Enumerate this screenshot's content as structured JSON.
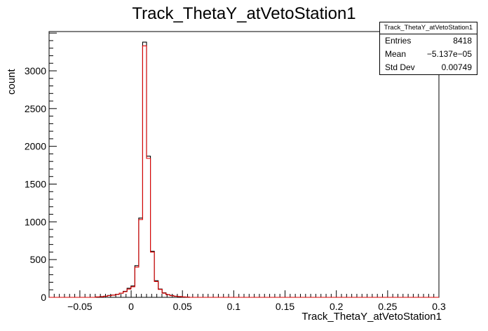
{
  "chart_data": {
    "type": "histogram",
    "title": "Track_ThetaY_atVetoStation1",
    "xlabel": "Track_ThetaY_atVetoStation1",
    "ylabel": "count",
    "xlim": [
      -0.08,
      0.3
    ],
    "ylim": [
      0,
      3520
    ],
    "x_ticks": [
      "−0.05",
      "0",
      "0.05",
      "0.1",
      "0.15",
      "0.2",
      "0.25",
      "0.3"
    ],
    "x_tick_values": [
      -0.05,
      0,
      0.05,
      0.1,
      0.15,
      0.2,
      0.25,
      0.3
    ],
    "y_ticks": [
      "0",
      "500",
      "1000",
      "1500",
      "2000",
      "2500",
      "3000"
    ],
    "y_tick_values": [
      0,
      500,
      1000,
      1500,
      2000,
      2500,
      3000
    ],
    "grid": false,
    "bin_edges_start": -0.08,
    "bin_width": 0.0038,
    "series": [
      {
        "color": "#000000",
        "values": [
          0,
          0,
          0,
          0,
          0,
          0,
          0,
          0,
          0,
          0,
          0,
          0,
          5,
          10,
          15,
          25,
          30,
          40,
          55,
          80,
          120,
          150,
          420,
          1050,
          3380,
          1870,
          610,
          220,
          110,
          60,
          35,
          25,
          15,
          10,
          5,
          3,
          0,
          0,
          0,
          0,
          0,
          0,
          0,
          0,
          0,
          0,
          0,
          0,
          0,
          0,
          0,
          0,
          0,
          0,
          0,
          0,
          0,
          0,
          0,
          0,
          0,
          0,
          0,
          0,
          0,
          0,
          0,
          0,
          0,
          0,
          0,
          0,
          0,
          0,
          0,
          0,
          0,
          0,
          0,
          0,
          0,
          0,
          0,
          0,
          0,
          0,
          0,
          0,
          0,
          0,
          0,
          0,
          0,
          0,
          0,
          0,
          0,
          0,
          0,
          0
        ]
      },
      {
        "color": "#dd0000",
        "values": [
          0,
          0,
          0,
          0,
          0,
          0,
          0,
          0,
          0,
          0,
          0,
          0,
          5,
          8,
          15,
          22,
          30,
          38,
          55,
          75,
          110,
          140,
          400,
          1030,
          3330,
          1840,
          600,
          210,
          105,
          55,
          35,
          22,
          15,
          10,
          5,
          3,
          0,
          0,
          0,
          0,
          0,
          0,
          0,
          0,
          0,
          0,
          0,
          0,
          0,
          0,
          0,
          0,
          0,
          0,
          0,
          0,
          0,
          0,
          0,
          0,
          0,
          0,
          0,
          0,
          0,
          0,
          0,
          0,
          0,
          0,
          0,
          0,
          0,
          0,
          0,
          0,
          0,
          0,
          0,
          0,
          0,
          0,
          0,
          0,
          0,
          0,
          0,
          0,
          0,
          0,
          0,
          0,
          0,
          0,
          0,
          0,
          0,
          0,
          0,
          0
        ]
      }
    ]
  },
  "stats": {
    "header": "Track_ThetaY_atVetoStation1",
    "rows": [
      {
        "key": "Entries",
        "value": "8418"
      },
      {
        "key": "Mean",
        "value": "−5.137e−05"
      },
      {
        "key": "Std Dev",
        "value": "0.00749"
      }
    ]
  }
}
